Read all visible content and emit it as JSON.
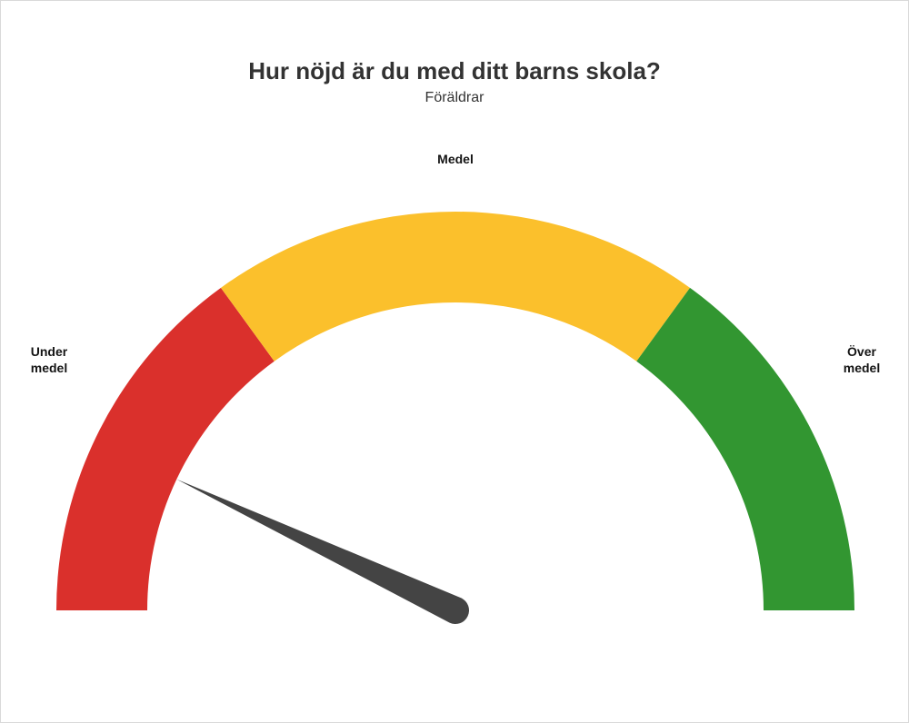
{
  "title": "Hur nöjd är du med ditt barns skola?",
  "subtitle": "Föräldrar",
  "gauge": {
    "type": "gauge",
    "min": 0,
    "max": 100,
    "value": 14,
    "segments": [
      {
        "from": 0,
        "to": 30,
        "color": "#da302c",
        "label": "Under\nmedel"
      },
      {
        "from": 30,
        "to": 70,
        "color": "#fbc02c",
        "label": "Medel"
      },
      {
        "from": 70,
        "to": 100,
        "color": "#329631",
        "label": "Över\nmedel"
      }
    ],
    "outer_radius": 439,
    "inner_radius": 339,
    "needle_length": 339,
    "needle_base_width": 30,
    "needle_color": "#444444",
    "background_color": "#ffffff",
    "border_color": "#d9d9d9",
    "title_fontsize": 26,
    "title_color": "#333333",
    "subtitle_fontsize": 16,
    "subtitle_color": "#333333",
    "label_fontsize": 14,
    "label_fontweight": 700,
    "label_color": "#141414"
  }
}
